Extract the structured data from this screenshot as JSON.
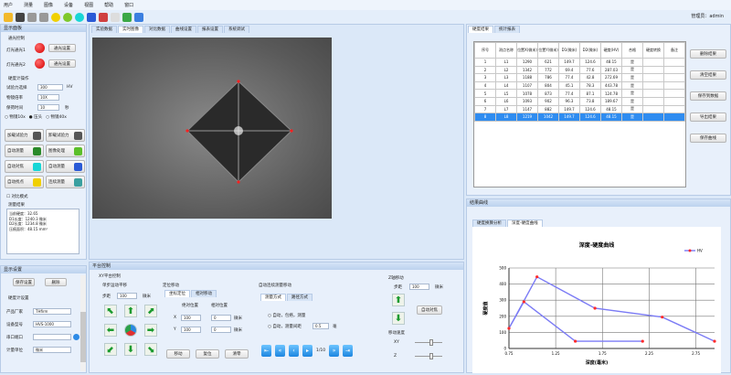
{
  "menu": [
    "用户",
    "测量",
    "图像",
    "设备",
    "视图",
    "帮助",
    "窗口"
  ],
  "toolbar_icons": [
    "folder-icon",
    "save-icon",
    "download-icon",
    "upload-icon",
    "target-icon",
    "refresh-icon",
    "square-focus-icon",
    "pencil-icon",
    "measure-icon",
    "frame-icon",
    "camera-icon",
    "globe-icon"
  ],
  "user_label": "管理员：admin",
  "left_panel": {
    "title": "显示面板",
    "light_section": "通光控制",
    "light1_label": "灯光通光1",
    "light2_label": "灯光通光2",
    "light_btn": "通光设置",
    "measure_section": "硬度计操作",
    "force_label": "试验力选择",
    "force_value": "300",
    "force_unit": "HV",
    "objective_label": "物镜倍率",
    "objective_value": "10X",
    "dwell_label": "保荷时间",
    "dwell_value": "10",
    "dwell_unit": "秒",
    "radios": [
      "物镜10x",
      "压头",
      "物镜40x"
    ],
    "buttons": [
      "加载试验力",
      "卸载试验力",
      "自动测量",
      "图像处理",
      "自动对焦",
      "自动测量",
      "自动找点",
      "连续测量"
    ],
    "checkbox": "对比模式",
    "result_title": "测量结果",
    "results": [
      "当前硬度：32.65",
      "D1长度：1240.3 微米",
      "D2长度：1234.8 微米",
      "压痕面积：48.15 mm²"
    ]
  },
  "left_bottom": {
    "title": "显示设置",
    "btn1": "保存设置",
    "btn2": "删除",
    "section": "硬度计设置",
    "rows": [
      {
        "label": "产品厂家",
        "value": "THfirm"
      },
      {
        "label": "设备型号",
        "value": "HVS-1000"
      },
      {
        "label": "串口端口",
        "value": ""
      },
      {
        "label": "计量单位",
        "value": "微米"
      }
    ]
  },
  "center_tabs": [
    "实验数据",
    "实时图像",
    "对比数据",
    "曲线设置",
    "报表设置",
    "系统调试"
  ],
  "control": {
    "title": "平台控制",
    "group": "XY平台控制",
    "move_title": "单步运动平移",
    "step_label": "步距",
    "step_value": "100",
    "step_unit": "微米",
    "pos_title": "定位移动",
    "pos_tabs": [
      "坐标定位",
      "相对移动"
    ],
    "col1": "绝对位置",
    "col2": "相对位置",
    "x_label": "X",
    "y_label": "Y",
    "x1": "100",
    "x2": "0",
    "y1": "100",
    "y2": "0",
    "unit": "微米",
    "pos_btns": [
      "移动",
      "复位",
      "清零"
    ],
    "auto_title": "自动连续测量移动",
    "auto_tabs": [
      "测量方式",
      "路径方式"
    ],
    "opt1": "自动，包络，测量",
    "opt2": "自动，测量间距",
    "opt2_value": "0.5",
    "opt2_unit": "毫",
    "page": "1/10",
    "z_title": "Z轴移动",
    "z_step_label": "步距",
    "z_step_value": "100",
    "z_unit": "微米",
    "z_btn": "自动对焦",
    "speed_title": "移动速度",
    "speed_xy": "XY",
    "speed_z": "Z",
    "speed_xy_level": 0.6,
    "speed_z_level": 0.6
  },
  "table_panel": {
    "tabs": [
      "硬度结果",
      "统计报表"
    ],
    "headers": [
      "序号",
      "测点名称",
      "位置X(微米)",
      "位置Y(微米)",
      "D1(微米)",
      "D2(微米)",
      "硬度(HV)",
      "合格",
      "硬度转换",
      "备注"
    ],
    "rows": [
      [
        "1",
        "L1",
        "1290",
        "621",
        "149.7",
        "124.6",
        "48.15",
        "是",
        "",
        ""
      ],
      [
        "2",
        "L2",
        "1342",
        "772",
        "69.4",
        "77.6",
        "287.03",
        "是",
        "",
        ""
      ],
      [
        "3",
        "L3",
        "1188",
        "786",
        "77.4",
        "42.8",
        "272.69",
        "是",
        "",
        ""
      ],
      [
        "4",
        "L4",
        "1107",
        "804",
        "45.1",
        "78.3",
        "443.78",
        "是",
        "",
        ""
      ],
      [
        "5",
        "L5",
        "1078",
        "873",
        "77.4",
        "87.1",
        "124.78",
        "是",
        "",
        ""
      ],
      [
        "6",
        "L6",
        "1093",
        "902",
        "96.3",
        "73.8",
        "189.67",
        "是",
        "",
        ""
      ],
      [
        "7",
        "L7",
        "1147",
        "882",
        "149.7",
        "124.6",
        "48.15",
        "是",
        "",
        ""
      ],
      [
        "8",
        "L8",
        "1219",
        "1042",
        "149.7",
        "124.6",
        "48.15",
        "是",
        "",
        ""
      ]
    ],
    "selected_row": 7,
    "side_buttons": [
      "删除结果",
      "清空结果",
      "保存到数据",
      "导出结果",
      "保存曲线"
    ]
  },
  "chart_panel": {
    "title": "结果曲线",
    "tabs": [
      "硬度换算分析",
      "深度-硬度曲线"
    ]
  },
  "chart_data": {
    "type": "line",
    "title": "深度-硬度曲线",
    "xlabel": "深度(毫米)",
    "ylabel": "硬度值",
    "xlim": [
      0.75,
      2.95
    ],
    "ylim": [
      0,
      500
    ],
    "x_ticks": [
      "0.75",
      "1.25",
      "1.75",
      "2.25",
      "2.75"
    ],
    "y_ticks": [
      "0",
      "100",
      "200",
      "300",
      "400",
      "500"
    ],
    "grid": true,
    "legend": "top-right",
    "series": [
      {
        "name": "HV",
        "color": "#7b7bf5",
        "marker_color": "#ff2a2a",
        "x": [
          2.18,
          1.46,
          0.91,
          0.75,
          1.05,
          1.67,
          2.39,
          2.95
        ],
        "y": [
          45,
          45,
          290,
          125,
          445,
          250,
          195,
          45
        ]
      }
    ]
  }
}
